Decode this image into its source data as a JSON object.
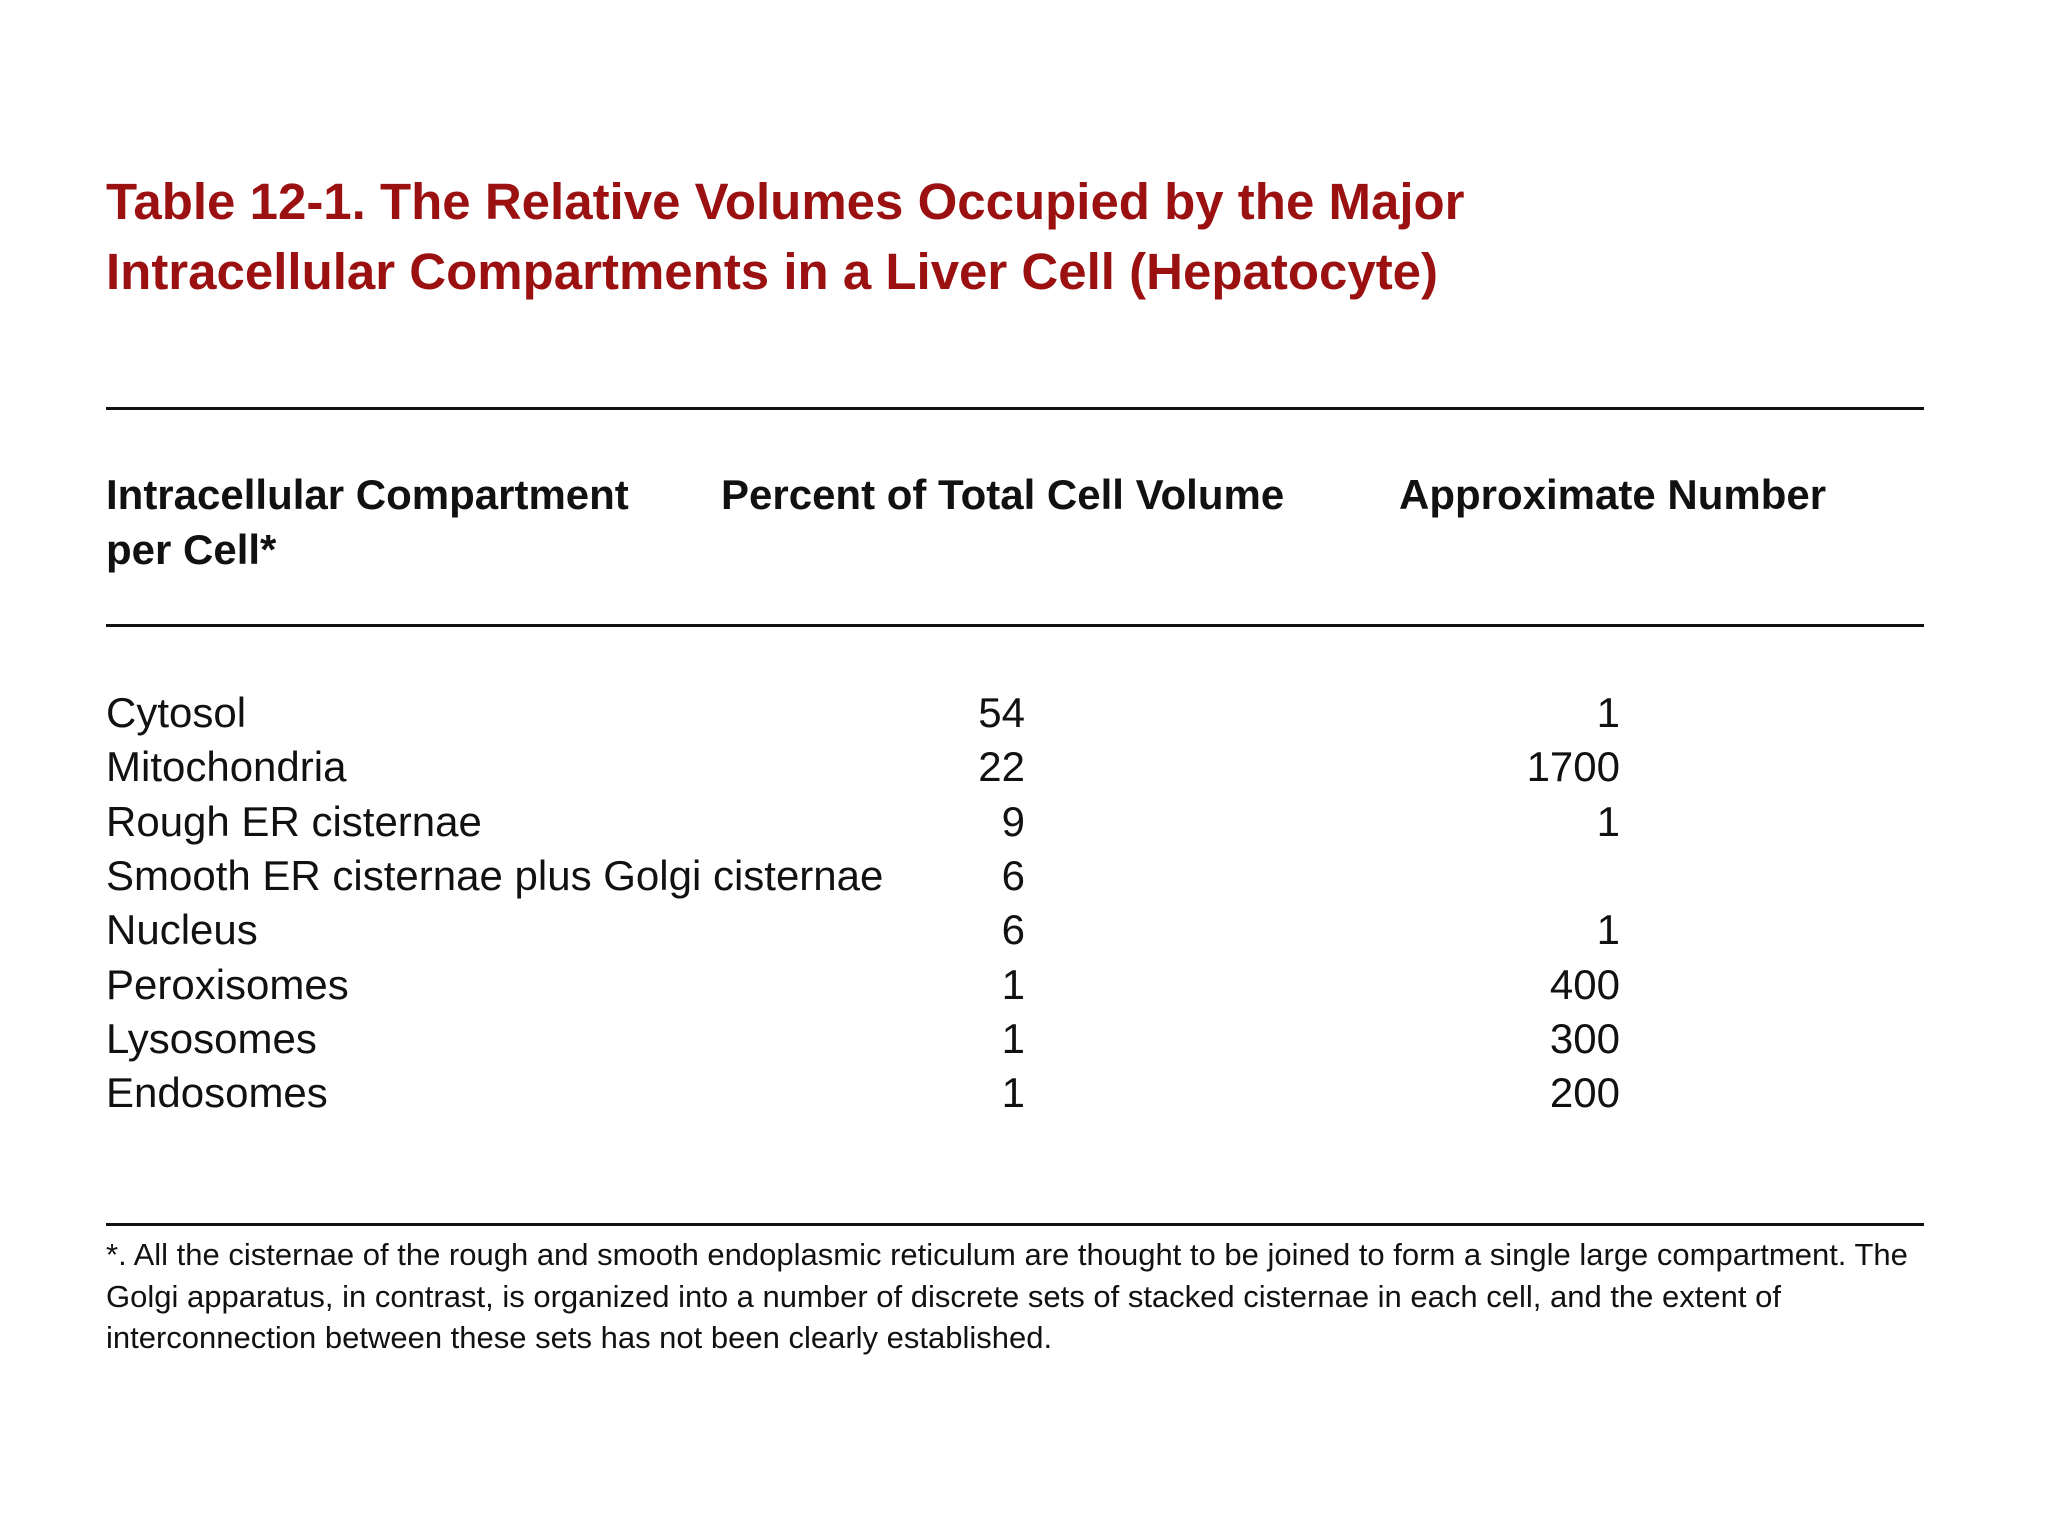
{
  "title_lines": [
    "Table 12-1. The Relative Volumes Occupied by the Major",
    "Intracellular Compartments in a Liver Cell (Hepatocyte)"
  ],
  "table": {
    "headers": [
      "Intracellular Compartment",
      "Percent of Total Cell Volume",
      "Approximate Number"
    ],
    "header_continuation": "per Cell*",
    "rows": [
      [
        "Cytosol",
        54,
        1
      ],
      [
        "Mitochondria",
        22,
        1700
      ],
      [
        "Rough ER cisternae",
        9,
        1
      ],
      [
        "Smooth ER cisternae plus Golgi cisternae",
        6,
        null
      ],
      [
        "Nucleus",
        6,
        1
      ],
      [
        "Peroxisomes",
        1,
        400
      ],
      [
        "Lysosomes",
        1,
        300
      ],
      [
        "Endosomes",
        1,
        200
      ]
    ]
  },
  "footnote": "*. All the cisternae of the rough and smooth endoplasmic reticulum are thought to be joined to form a single large compartment. The Golgi apparatus, in contrast, is organized into a number of discrete sets of stacked cisternae in each cell, and the extent of interconnection between these sets has not been clearly established."
}
